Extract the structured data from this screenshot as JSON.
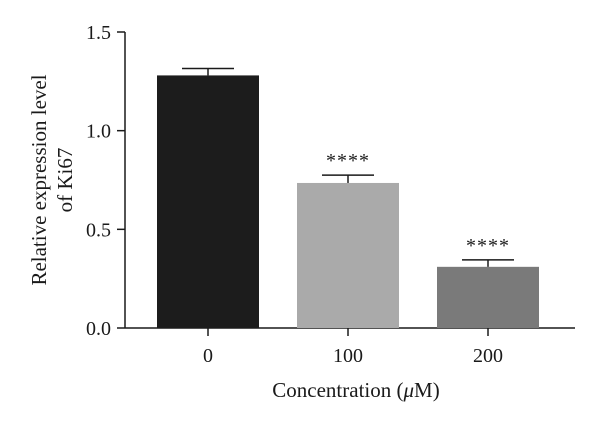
{
  "chart_data": {
    "type": "bar",
    "categories": [
      "0",
      "100",
      "200"
    ],
    "values": [
      1.28,
      0.735,
      0.31
    ],
    "errors": [
      0.035,
      0.04,
      0.035
    ],
    "bar_colors": [
      "#1c1c1c",
      "#aaaaaa",
      "#7a7a7a"
    ],
    "significance": [
      "",
      "****",
      "****"
    ],
    "ylabel_lines": [
      "Relative expression level",
      "of Ki67"
    ],
    "xlabel_prefix": "Concentration (",
    "xlabel_unit": "μ",
    "xlabel_suffix": "M)",
    "ylim": [
      0,
      1.5
    ],
    "yticks": [
      "0.0",
      "0.5",
      "1.0",
      "1.5"
    ],
    "grid": false,
    "legend": "none"
  }
}
